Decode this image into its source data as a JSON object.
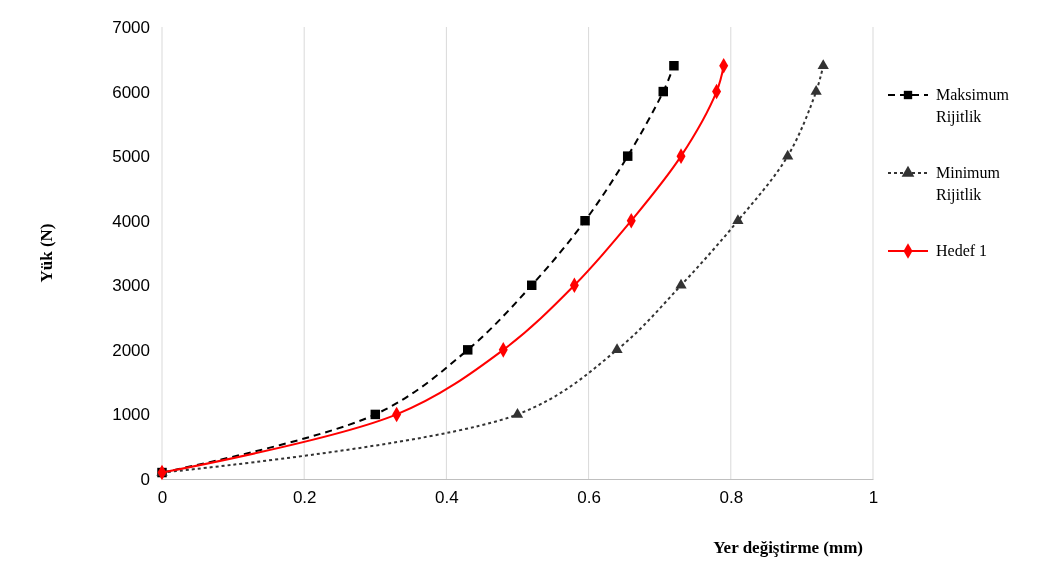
{
  "chart_data": {
    "type": "line",
    "xlabel": "Yer değiştirme (mm)",
    "ylabel": "Yük (N)",
    "xlim": [
      0,
      1
    ],
    "xticks": [
      0,
      0.2,
      0.4,
      0.6,
      0.8,
      1
    ],
    "ylim": [
      0,
      7000
    ],
    "yticks": [
      0,
      1000,
      2000,
      3000,
      4000,
      5000,
      6000,
      7000
    ],
    "grid": "x",
    "legend": "right",
    "series": [
      {
        "name": "Maksimum Rijitlik",
        "color": "#000000",
        "marker": "square",
        "line_style": "dashed",
        "x": [
          0,
          0.3,
          0.43,
          0.52,
          0.595,
          0.655,
          0.705,
          0.72
        ],
        "values": [
          100,
          1000,
          2000,
          3000,
          4000,
          5000,
          6000,
          6400
        ]
      },
      {
        "name": "Minimum Rijitlik",
        "color": "#333333",
        "marker": "triangle",
        "line_style": "dotted",
        "x": [
          0,
          0.5,
          0.64,
          0.73,
          0.81,
          0.88,
          0.92,
          0.93
        ],
        "values": [
          100,
          1000,
          2000,
          3000,
          4000,
          5000,
          6000,
          6400
        ]
      },
      {
        "name": "Hedef 1",
        "color": "#ff0000",
        "marker": "diamond",
        "line_style": "solid",
        "x": [
          0,
          0.33,
          0.48,
          0.58,
          0.66,
          0.73,
          0.78,
          0.79
        ],
        "values": [
          100,
          1000,
          2000,
          3000,
          4000,
          5000,
          6000,
          6400
        ]
      }
    ]
  }
}
